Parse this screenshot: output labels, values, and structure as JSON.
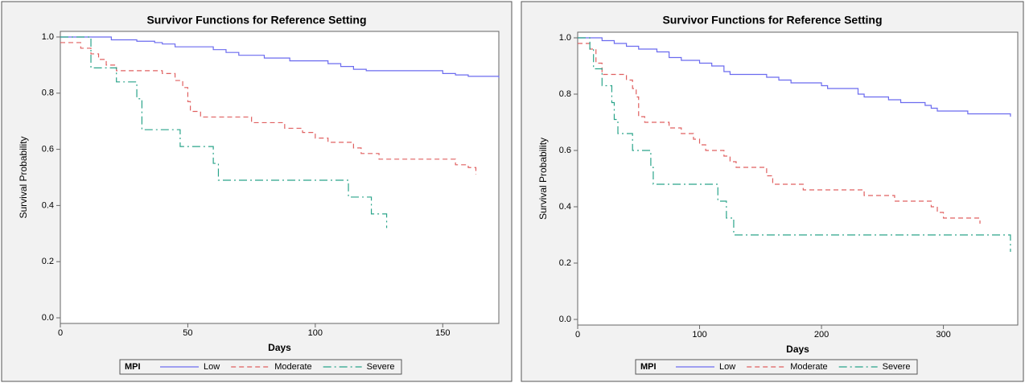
{
  "chart_data": [
    {
      "type": "line",
      "step": "post",
      "title": "Survivor Functions for Reference Setting",
      "x_label": "Days",
      "y_label": "Survival Probability",
      "xlim": [
        0,
        172
      ],
      "ylim": [
        -0.02,
        1.02
      ],
      "xticks": [
        0,
        50,
        100,
        150
      ],
      "yticks": [
        {
          "value": 0,
          "label": "0.0"
        },
        {
          "value": 0.2,
          "label": "0.2"
        },
        {
          "value": 0.4,
          "label": "0.4"
        },
        {
          "value": 0.6,
          "label": "0.6"
        },
        {
          "value": 0.8,
          "label": "0.8"
        },
        {
          "value": 1,
          "label": "1.0"
        }
      ],
      "legend_title": "MPI",
      "series": [
        {
          "name": "Low",
          "color": "#6b6bef",
          "dash": "solid",
          "x": [
            0,
            20,
            30,
            37,
            40,
            45,
            60,
            65,
            70,
            80,
            90,
            105,
            110,
            115,
            120,
            150,
            155,
            160,
            172
          ],
          "values": [
            1.0,
            0.99,
            0.985,
            0.98,
            0.975,
            0.965,
            0.955,
            0.945,
            0.935,
            0.925,
            0.915,
            0.905,
            0.895,
            0.885,
            0.88,
            0.87,
            0.865,
            0.86,
            0.855
          ]
        },
        {
          "name": "Moderate",
          "color": "#e06060",
          "dash": "dashed",
          "x": [
            0,
            8,
            12,
            15,
            18,
            22,
            40,
            45,
            48,
            50,
            51,
            55,
            75,
            88,
            95,
            100,
            105,
            115,
            118,
            125,
            155,
            160,
            163
          ],
          "values": [
            0.98,
            0.96,
            0.94,
            0.92,
            0.9,
            0.88,
            0.87,
            0.845,
            0.82,
            0.77,
            0.735,
            0.715,
            0.695,
            0.675,
            0.66,
            0.64,
            0.625,
            0.605,
            0.585,
            0.565,
            0.545,
            0.535,
            0.51
          ]
        },
        {
          "name": "Severe",
          "color": "#2aa48a",
          "dash": "dashdot",
          "x": [
            0,
            12,
            22,
            30,
            32,
            47,
            60,
            62,
            113,
            122,
            128
          ],
          "values": [
            1.0,
            0.89,
            0.84,
            0.78,
            0.67,
            0.61,
            0.55,
            0.49,
            0.43,
            0.37,
            0.32
          ]
        }
      ]
    },
    {
      "type": "line",
      "step": "post",
      "title": "Survivor Functions for Reference Setting",
      "x_label": "Days",
      "y_label": "Survival Probability",
      "xlim": [
        0,
        361
      ],
      "ylim": [
        -0.02,
        1.02
      ],
      "xticks": [
        0,
        100,
        200,
        300
      ],
      "yticks": [
        {
          "value": 0,
          "label": "0.0"
        },
        {
          "value": 0.2,
          "label": "0.2"
        },
        {
          "value": 0.4,
          "label": "0.4"
        },
        {
          "value": 0.6,
          "label": "0.6"
        },
        {
          "value": 0.8,
          "label": "0.8"
        },
        {
          "value": 1,
          "label": "1.0"
        }
      ],
      "legend_title": "MPI",
      "series": [
        {
          "name": "Low",
          "color": "#6b6bef",
          "dash": "solid",
          "x": [
            0,
            20,
            30,
            40,
            50,
            65,
            75,
            85,
            100,
            110,
            120,
            125,
            155,
            165,
            175,
            200,
            205,
            230,
            235,
            255,
            265,
            285,
            290,
            295,
            320,
            355
          ],
          "values": [
            1.0,
            0.99,
            0.98,
            0.97,
            0.96,
            0.95,
            0.93,
            0.92,
            0.91,
            0.9,
            0.88,
            0.87,
            0.86,
            0.85,
            0.84,
            0.83,
            0.82,
            0.8,
            0.79,
            0.78,
            0.77,
            0.76,
            0.75,
            0.74,
            0.73,
            0.72
          ]
        },
        {
          "name": "Moderate",
          "color": "#e06060",
          "dash": "dashed",
          "x": [
            0,
            10,
            15,
            20,
            40,
            45,
            48,
            50,
            55,
            75,
            85,
            95,
            100,
            105,
            120,
            125,
            130,
            155,
            160,
            185,
            235,
            260,
            290,
            295,
            300,
            330
          ],
          "values": [
            0.98,
            0.96,
            0.91,
            0.87,
            0.85,
            0.82,
            0.79,
            0.72,
            0.7,
            0.68,
            0.66,
            0.64,
            0.62,
            0.6,
            0.58,
            0.56,
            0.54,
            0.51,
            0.48,
            0.46,
            0.44,
            0.42,
            0.4,
            0.38,
            0.36,
            0.34
          ]
        },
        {
          "name": "Severe",
          "color": "#2aa48a",
          "dash": "dashdot",
          "x": [
            0,
            10,
            13,
            20,
            28,
            30,
            33,
            45,
            60,
            62,
            115,
            122,
            128,
            355
          ],
          "values": [
            1.0,
            0.96,
            0.89,
            0.83,
            0.77,
            0.71,
            0.66,
            0.6,
            0.54,
            0.48,
            0.42,
            0.36,
            0.3,
            0.24
          ]
        }
      ]
    }
  ]
}
